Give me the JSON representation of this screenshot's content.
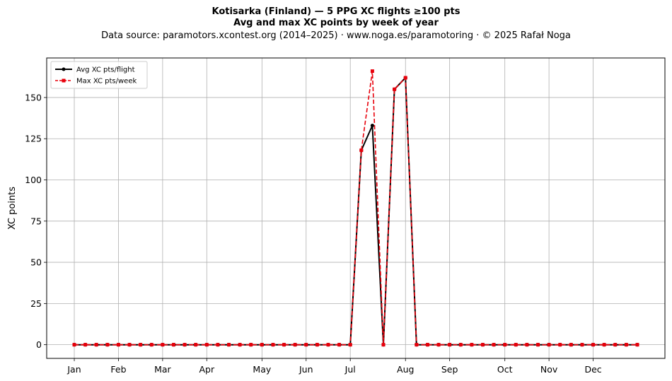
{
  "chart_data": {
    "type": "line",
    "title": "Kotisarka (Finland)  —  5 PPG XC flights ≥100 pts",
    "subtitle": "Avg and max XC points by week of year",
    "source": "Data source: paramotors.xcontest.org (2014–2025)  ·  www.noga.es/paramotoring  ·  © 2025 Rafał Noga",
    "xlabel": "",
    "ylabel": "XC points",
    "xlim": [
      -1.5,
      54.5
    ],
    "ylim": [
      -8.3,
      174.0
    ],
    "grid": true,
    "legend_position": "top-left",
    "month_ticks": [
      {
        "label": "Jan",
        "week": 1
      },
      {
        "label": "Feb",
        "week": 5
      },
      {
        "label": "Mar",
        "week": 9
      },
      {
        "label": "Apr",
        "week": 13
      },
      {
        "label": "May",
        "week": 18
      },
      {
        "label": "Jun",
        "week": 22
      },
      {
        "label": "Jul",
        "week": 26
      },
      {
        "label": "Aug",
        "week": 31
      },
      {
        "label": "Sep",
        "week": 35
      },
      {
        "label": "Oct",
        "week": 40
      },
      {
        "label": "Nov",
        "week": 44
      },
      {
        "label": "Dec",
        "week": 48
      }
    ],
    "y_ticks": [
      0,
      25,
      50,
      75,
      100,
      125,
      150
    ],
    "x": [
      1,
      2,
      3,
      4,
      5,
      6,
      7,
      8,
      9,
      10,
      11,
      12,
      13,
      14,
      15,
      16,
      17,
      18,
      19,
      20,
      21,
      22,
      23,
      24,
      25,
      26,
      27,
      28,
      29,
      30,
      31,
      32,
      33,
      34,
      35,
      36,
      37,
      38,
      39,
      40,
      41,
      42,
      43,
      44,
      45,
      46,
      47,
      48,
      49,
      50,
      51,
      52
    ],
    "series": [
      {
        "name": "Avg XC pts/flight",
        "color": "#000000",
        "style": "solid",
        "marker": "circle",
        "values": [
          0,
          0,
          0,
          0,
          0,
          0,
          0,
          0,
          0,
          0,
          0,
          0,
          0,
          0,
          0,
          0,
          0,
          0,
          0,
          0,
          0,
          0,
          0,
          0,
          0,
          0,
          118,
          133,
          0,
          155,
          162,
          0,
          0,
          0,
          0,
          0,
          0,
          0,
          0,
          0,
          0,
          0,
          0,
          0,
          0,
          0,
          0,
          0,
          0,
          0,
          0,
          0
        ]
      },
      {
        "name": "Max XC pts/week",
        "color": "#e8000b",
        "style": "dashed",
        "marker": "square",
        "values": [
          0,
          0,
          0,
          0,
          0,
          0,
          0,
          0,
          0,
          0,
          0,
          0,
          0,
          0,
          0,
          0,
          0,
          0,
          0,
          0,
          0,
          0,
          0,
          0,
          0,
          0,
          118,
          166,
          0,
          155,
          162,
          0,
          0,
          0,
          0,
          0,
          0,
          0,
          0,
          0,
          0,
          0,
          0,
          0,
          0,
          0,
          0,
          0,
          0,
          0,
          0,
          0
        ]
      }
    ]
  }
}
